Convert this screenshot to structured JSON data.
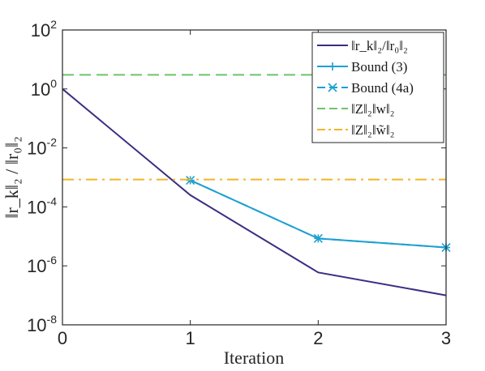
{
  "chart_data": {
    "type": "line",
    "xlabel": "Iteration",
    "ylabel": "‖r_k‖₂ / ‖r₀‖₂",
    "xlim": [
      0,
      3
    ],
    "ylim": [
      1e-08,
      100
    ],
    "yscale": "log",
    "x_ticks": [
      0,
      1,
      2,
      3
    ],
    "y_ticks": [
      {
        "value": 100,
        "base": "10",
        "exp": "2"
      },
      {
        "value": 1,
        "base": "10",
        "exp": "0"
      },
      {
        "value": 0.01,
        "base": "10",
        "exp": "-2"
      },
      {
        "value": 0.0001,
        "base": "10",
        "exp": "-4"
      },
      {
        "value": 1e-06,
        "base": "10",
        "exp": "-6"
      },
      {
        "value": 1e-08,
        "base": "10",
        "exp": "-8"
      }
    ],
    "legend_position": "top-right",
    "series": [
      {
        "name": "‖r_k‖₂/‖r₀‖₂",
        "color": "#3b2e83",
        "style": "solid",
        "marker": "none",
        "x": [
          0,
          1,
          2,
          3
        ],
        "y": [
          1.0,
          0.00025,
          6e-07,
          1e-07
        ]
      },
      {
        "name": "Bound (3)",
        "color": "#1ea0d2",
        "style": "solid",
        "marker": "plus",
        "x": [
          1,
          2,
          3
        ],
        "y": [
          0.0008,
          8.5e-06,
          4.2e-06
        ]
      },
      {
        "name": "Bound (4a)",
        "color": "#1ea0d2",
        "style": "dashed",
        "marker": "x",
        "x": [
          1,
          2,
          3
        ],
        "y": [
          0.0008,
          8.5e-06,
          4.2e-06
        ]
      },
      {
        "name": "‖Z‖₂‖w‖₂",
        "color": "#6cc46a",
        "style": "dashed",
        "marker": "none",
        "x": [
          0,
          3
        ],
        "y": [
          3.0,
          3.0
        ]
      },
      {
        "name": "‖Z‖₂‖w̃‖₂",
        "color": "#f0b52a",
        "style": "dashdot",
        "marker": "none",
        "x": [
          0,
          3
        ],
        "y": [
          0.00085,
          0.00085
        ]
      }
    ]
  }
}
